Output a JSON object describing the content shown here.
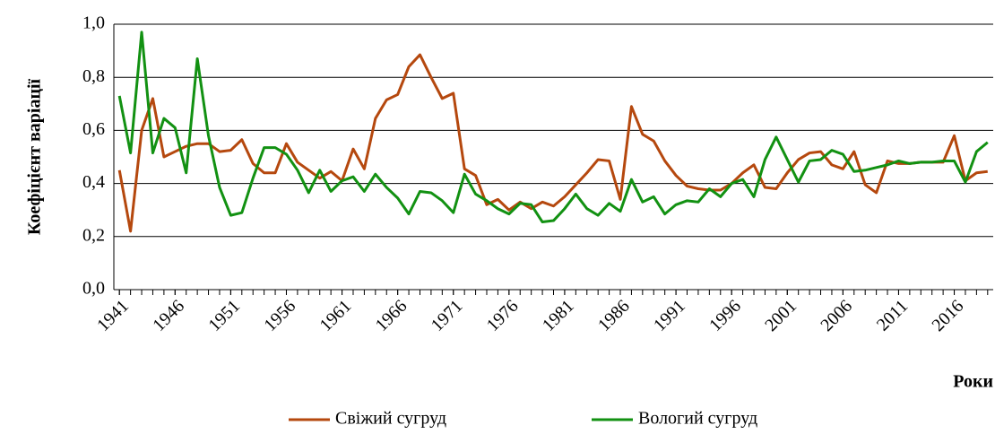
{
  "chart_data": {
    "type": "line",
    "y_label": "Коефіцієнт варіації",
    "x_label": "Роки",
    "x": [
      1941,
      1942,
      1943,
      1944,
      1945,
      1946,
      1947,
      1948,
      1949,
      1950,
      1951,
      1952,
      1953,
      1954,
      1955,
      1956,
      1957,
      1958,
      1959,
      1960,
      1961,
      1962,
      1963,
      1964,
      1965,
      1966,
      1967,
      1968,
      1969,
      1970,
      1971,
      1972,
      1973,
      1974,
      1975,
      1976,
      1977,
      1978,
      1979,
      1980,
      1981,
      1982,
      1983,
      1984,
      1985,
      1986,
      1987,
      1988,
      1989,
      1990,
      1991,
      1992,
      1993,
      1994,
      1995,
      1996,
      1997,
      1998,
      1999,
      2000,
      2001,
      2002,
      2003,
      2004,
      2005,
      2006,
      2007,
      2008,
      2009,
      2010,
      2011,
      2012,
      2013,
      2014,
      2015,
      2016,
      2017,
      2018,
      2019
    ],
    "series": [
      {
        "name": "Свіжий сугруд",
        "color": "#b5480e",
        "values": [
          0.45,
          0.22,
          0.6,
          0.72,
          0.5,
          0.52,
          0.54,
          0.55,
          0.55,
          0.52,
          0.525,
          0.565,
          0.475,
          0.44,
          0.44,
          0.55,
          0.48,
          0.45,
          0.42,
          0.445,
          0.41,
          0.53,
          0.455,
          0.645,
          0.715,
          0.735,
          0.84,
          0.885,
          0.8,
          0.72,
          0.74,
          0.455,
          0.43,
          0.32,
          0.34,
          0.3,
          0.33,
          0.305,
          0.33,
          0.315,
          0.35,
          0.395,
          0.44,
          0.49,
          0.485,
          0.34,
          0.69,
          0.585,
          0.56,
          0.485,
          0.43,
          0.39,
          0.38,
          0.375,
          0.375,
          0.4,
          0.44,
          0.47,
          0.385,
          0.38,
          0.44,
          0.49,
          0.515,
          0.52,
          0.47,
          0.455,
          0.52,
          0.395,
          0.365,
          0.485,
          0.475,
          0.475,
          0.48,
          0.48,
          0.48,
          0.58,
          0.41,
          0.44,
          0.445
        ]
      },
      {
        "name": "Вологий сугруд",
        "color": "#129112",
        "values": [
          0.73,
          0.515,
          0.97,
          0.515,
          0.645,
          0.61,
          0.44,
          0.87,
          0.58,
          0.385,
          0.28,
          0.29,
          0.42,
          0.535,
          0.535,
          0.51,
          0.45,
          0.365,
          0.45,
          0.37,
          0.41,
          0.425,
          0.37,
          0.435,
          0.385,
          0.345,
          0.285,
          0.37,
          0.365,
          0.335,
          0.29,
          0.435,
          0.36,
          0.335,
          0.305,
          0.285,
          0.325,
          0.32,
          0.255,
          0.26,
          0.305,
          0.36,
          0.305,
          0.28,
          0.325,
          0.295,
          0.415,
          0.33,
          0.35,
          0.285,
          0.32,
          0.335,
          0.33,
          0.38,
          0.35,
          0.4,
          0.415,
          0.35,
          0.49,
          0.575,
          0.49,
          0.405,
          0.485,
          0.49,
          0.525,
          0.51,
          0.445,
          0.45,
          0.46,
          0.47,
          0.485,
          0.475,
          0.48,
          0.48,
          0.485,
          0.485,
          0.405,
          0.52,
          0.555
        ]
      }
    ],
    "xlim": [
      1940.5,
      2019.5
    ],
    "xticks": [
      1941,
      1946,
      1951,
      1956,
      1961,
      1966,
      1971,
      1976,
      1981,
      1986,
      1991,
      1996,
      2001,
      2006,
      2011,
      2016
    ],
    "ylim": [
      0,
      1
    ],
    "yticks": [
      {
        "value": 0,
        "label": "0,0"
      },
      {
        "value": 0.2,
        "label": "0,2"
      },
      {
        "value": 0.4,
        "label": "0,4"
      },
      {
        "value": 0.6,
        "label": "0,6"
      },
      {
        "value": 0.8,
        "label": "0,8"
      },
      {
        "value": 1,
        "label": "1,0"
      }
    ],
    "grid": true
  }
}
